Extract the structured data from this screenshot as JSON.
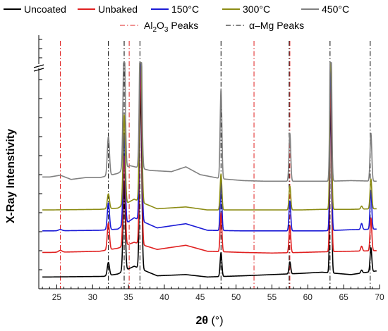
{
  "chart_data": {
    "type": "line",
    "xlabel_bold": "2θ",
    "xlabel_unit": " (°)",
    "ylabel": "X-Ray Intenstivity",
    "xlim": [
      22.5,
      70
    ],
    "x_ticks": [
      25,
      30,
      35,
      40,
      45,
      50,
      55,
      60,
      65,
      70
    ],
    "legend_location": "top",
    "series": [
      {
        "name": "Uncoated",
        "color": "#000000",
        "baseline": 0.0,
        "noise": [
          [
            24,
            0.2
          ],
          [
            31.5,
            0.3
          ],
          [
            33.5,
            0.7
          ],
          [
            35.8,
            2.0
          ],
          [
            39,
            0.4
          ],
          [
            43,
            0.6
          ],
          [
            46,
            0.2
          ],
          [
            51,
            0.4
          ],
          [
            55,
            0.6
          ],
          [
            59,
            0.8
          ],
          [
            62,
            1.0
          ],
          [
            66,
            0.6
          ],
          [
            69.5,
            1.2
          ]
        ],
        "peaks": [
          [
            32.2,
            2.2,
            0.15
          ],
          [
            34.4,
            15,
            0.15
          ],
          [
            36.7,
            30,
            0.15
          ],
          [
            47.9,
            4.0,
            0.12
          ],
          [
            57.5,
            2.0,
            0.12
          ],
          [
            63.2,
            30,
            0.12
          ],
          [
            67.5,
            0.5,
            0.12
          ],
          [
            68.8,
            4.0,
            0.12
          ]
        ]
      },
      {
        "name": "Unbaked",
        "color": "#e02020",
        "baseline": 4.0,
        "noise": [
          [
            24,
            0.3
          ],
          [
            31,
            0.5
          ],
          [
            33.5,
            1.0
          ],
          [
            35.8,
            2.0
          ],
          [
            39,
            0.8
          ],
          [
            43,
            1.5
          ],
          [
            46,
            0.5
          ],
          [
            51,
            0.3
          ],
          [
            55,
            0.2
          ],
          [
            59,
            0.3
          ],
          [
            62,
            0.4
          ],
          [
            66,
            0.5
          ],
          [
            69.5,
            0.6
          ]
        ],
        "peaks": [
          [
            25.5,
            0.3,
            0.25
          ],
          [
            32.2,
            4.5,
            0.15
          ],
          [
            34.4,
            15,
            0.15
          ],
          [
            36.7,
            30,
            0.15
          ],
          [
            47.9,
            6.5,
            0.12
          ],
          [
            57.5,
            4.5,
            0.12
          ],
          [
            63.2,
            30,
            0.12
          ],
          [
            67.5,
            0.8,
            0.12
          ],
          [
            68.8,
            5.5,
            0.12
          ]
        ]
      },
      {
        "name": "150°C",
        "color": "#1a1ad6",
        "baseline": 7.6,
        "noise": [
          [
            24,
            0.3
          ],
          [
            31,
            0.4
          ],
          [
            33.5,
            0.6
          ],
          [
            35.8,
            2.5
          ],
          [
            39,
            0.8
          ],
          [
            43,
            1.5
          ],
          [
            46,
            0.4
          ],
          [
            51,
            0.3
          ],
          [
            55,
            0.3
          ],
          [
            59,
            0.3
          ],
          [
            62,
            0.3
          ],
          [
            66,
            0.5
          ],
          [
            69.5,
            0.6
          ]
        ],
        "peaks": [
          [
            25.5,
            0.2,
            0.25
          ],
          [
            32.2,
            4.5,
            0.15
          ],
          [
            34.4,
            15,
            0.15
          ],
          [
            36.7,
            30,
            0.15
          ],
          [
            47.9,
            8.0,
            0.12
          ],
          [
            57.5,
            5.0,
            0.12
          ],
          [
            63.2,
            30,
            0.12
          ],
          [
            67.5,
            1.0,
            0.12
          ],
          [
            68.8,
            6.5,
            0.12
          ]
        ]
      },
      {
        "name": "300°C",
        "color": "#8c8c14",
        "baseline": 11.2,
        "noise": [
          [
            24,
            0.2
          ],
          [
            31,
            0.3
          ],
          [
            33.5,
            0.5
          ],
          [
            35.8,
            2.0
          ],
          [
            39,
            0.4
          ],
          [
            43,
            0.7
          ],
          [
            46,
            0.2
          ],
          [
            51,
            0.2
          ],
          [
            55,
            0.2
          ],
          [
            59,
            0.2
          ],
          [
            62,
            0.3
          ],
          [
            66,
            0.3
          ],
          [
            69.5,
            0.4
          ]
        ],
        "peaks": [
          [
            32.2,
            2.5,
            0.15
          ],
          [
            34.4,
            15,
            0.15
          ],
          [
            36.7,
            30,
            0.15
          ],
          [
            47.9,
            6.0,
            0.12
          ],
          [
            57.5,
            4.0,
            0.12
          ],
          [
            63.2,
            30,
            0.12
          ],
          [
            67.5,
            0.5,
            0.12
          ],
          [
            68.8,
            5.0,
            0.12
          ]
        ]
      },
      {
        "name": "450°C",
        "color": "#808080",
        "baseline": 16.0,
        "noise": [
          [
            24,
            0.9
          ],
          [
            25.5,
            1.2
          ],
          [
            27,
            0.5
          ],
          [
            29,
            0.8
          ],
          [
            31,
            0.8
          ],
          [
            33.5,
            1.5
          ],
          [
            35.2,
            2.8
          ],
          [
            38,
            2.0
          ],
          [
            41,
            1.8
          ],
          [
            43,
            2.6
          ],
          [
            45,
            1.3
          ],
          [
            48,
            0.6
          ],
          [
            51,
            0.3
          ],
          [
            54,
            0.2
          ],
          [
            57,
            0.2
          ],
          [
            60,
            0.2
          ],
          [
            63,
            0.2
          ],
          [
            66,
            0.3
          ],
          [
            69.5,
            0.2
          ]
        ],
        "peaks": [
          [
            32.2,
            6.5,
            0.15
          ],
          [
            34.4,
            22,
            0.15
          ],
          [
            36.7,
            30,
            0.15
          ],
          [
            47.9,
            15,
            0.12
          ],
          [
            57.5,
            8.0,
            0.12
          ],
          [
            63.2,
            30,
            0.12
          ],
          [
            68.8,
            8.0,
            0.12
          ]
        ]
      }
    ],
    "reference_lines": [
      {
        "name": "Al2O3 Peaks",
        "label_text": "Al",
        "label_sub1": "2",
        "label_mid": "O",
        "label_sub2": "3",
        "label_rest": " Peaks",
        "color": "#e02020",
        "x": [
          25.5,
          35.1,
          52.5,
          57.5
        ]
      },
      {
        "name": "α–Mg Peaks",
        "label_text": "α–Mg Peaks",
        "color": "#000000",
        "x": [
          32.2,
          34.4,
          36.6,
          47.9,
          57.4,
          63.1,
          68.7
        ]
      }
    ]
  }
}
